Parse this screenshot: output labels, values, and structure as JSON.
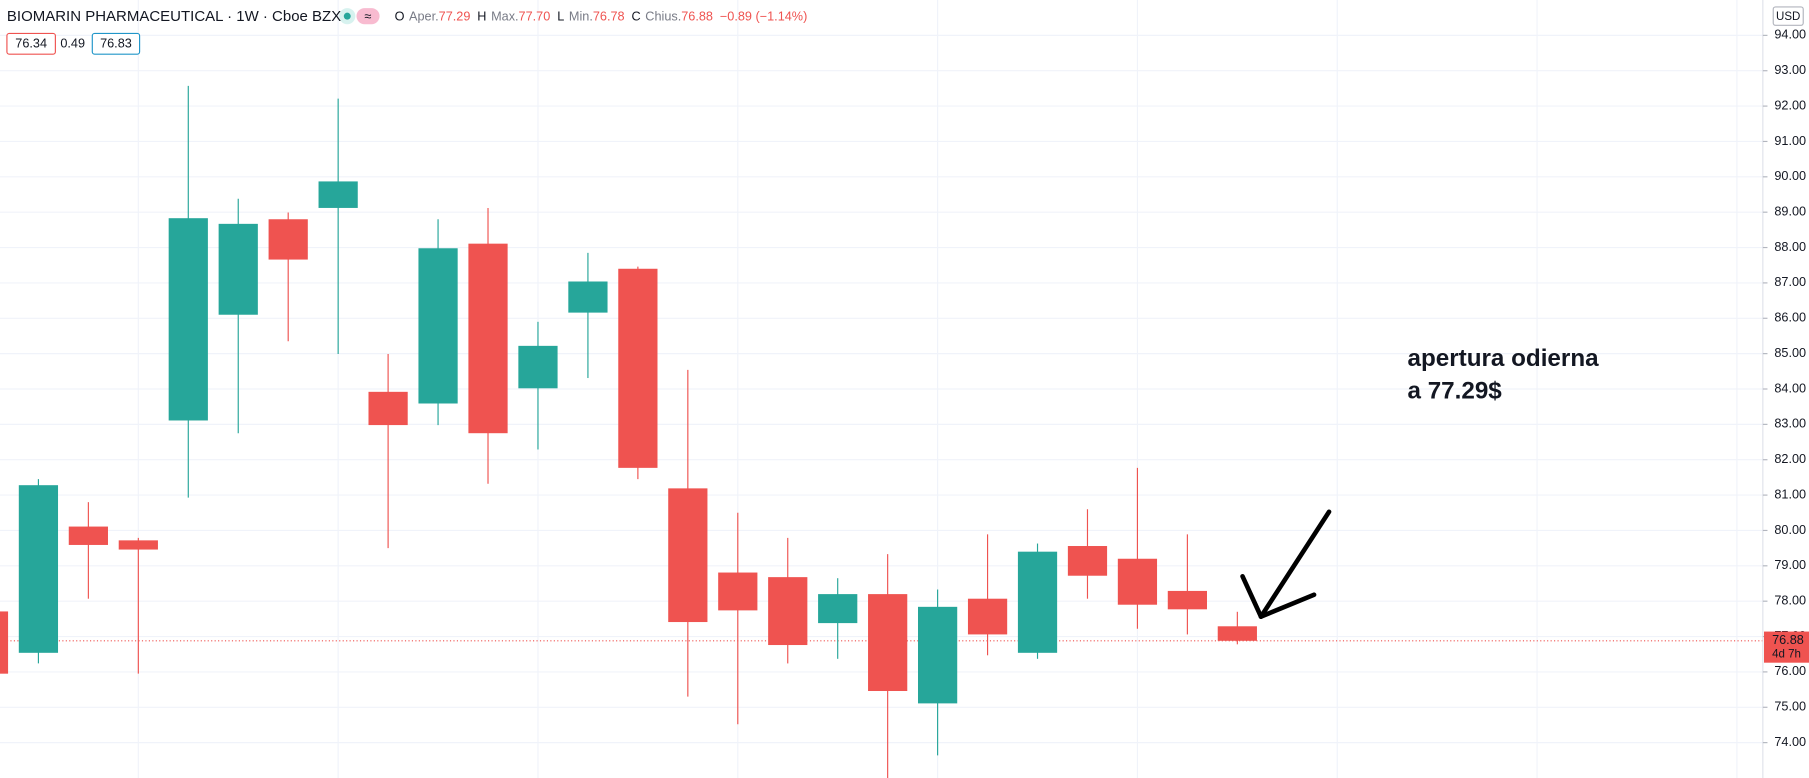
{
  "chart_data": {
    "type": "candlestick",
    "title": "BIOMARIN PHARMACEUTICAL · 1W · Cboe BZX",
    "legend_ohlc": [
      {
        "key": "O",
        "label": "Aper.",
        "value": "77.29"
      },
      {
        "key": "H",
        "label": "Max.",
        "value": "77.70"
      },
      {
        "key": "L",
        "label": "Min.",
        "value": "76.78"
      },
      {
        "key": "C",
        "label": "Chius.",
        "value": "76.88"
      }
    ],
    "change": "−0.89 (−1.14%)",
    "badges": [
      "76.34",
      "0.49",
      "76.83"
    ],
    "currency": "USD",
    "last_price": 76.88,
    "countdown": "4d 7h",
    "annotation": [
      "apertura odierna",
      "a 77.29$"
    ],
    "up_color": "#26a69a",
    "down_color": "#ef5350",
    "categories": [
      null,
      null,
      null,
      null,
      null,
      null,
      null,
      null,
      null,
      null,
      null,
      null,
      null,
      null,
      null,
      null,
      null,
      null,
      null,
      null,
      null,
      null,
      null,
      null,
      null,
      null
    ],
    "series": [
      {
        "name": "Open",
        "values": [
          77.71,
          76.54,
          80.11,
          79.72,
          83.11,
          86.1,
          88.8,
          89.12,
          83.92,
          83.59,
          88.11,
          84.02,
          86.16,
          87.4,
          81.19,
          78.81,
          78.68,
          77.38,
          78.2,
          75.11,
          78.07,
          76.54,
          79.56,
          79.2,
          78.29,
          77.29
        ]
      },
      {
        "name": "High",
        "values": [
          77.75,
          81.45,
          80.8,
          79.79,
          92.57,
          89.38,
          88.99,
          92.21,
          84.99,
          88.8,
          89.12,
          85.9,
          87.85,
          87.46,
          84.54,
          80.5,
          79.79,
          78.65,
          79.33,
          78.33,
          79.89,
          79.63,
          80.6,
          81.77,
          79.89,
          77.7
        ]
      },
      {
        "name": "Low",
        "values": [
          75.9,
          76.24,
          78.07,
          75.95,
          80.93,
          82.75,
          85.35,
          84.99,
          79.5,
          82.98,
          81.32,
          82.29,
          84.31,
          81.45,
          75.3,
          74.52,
          76.24,
          76.37,
          73.0,
          73.64,
          76.47,
          76.37,
          78.07,
          77.22,
          77.06,
          76.78
        ]
      },
      {
        "name": "Close",
        "values": [
          75.95,
          81.28,
          79.59,
          79.46,
          88.83,
          88.67,
          87.66,
          89.87,
          82.98,
          87.98,
          82.75,
          85.22,
          87.04,
          81.77,
          77.41,
          77.74,
          76.76,
          78.2,
          75.46,
          77.84,
          77.06,
          79.4,
          78.72,
          77.9,
          77.77,
          76.88
        ]
      }
    ],
    "ylim": [
      73,
      95
    ],
    "yticks": [
      {
        "value": 74,
        "label": "74.00"
      },
      {
        "value": 75,
        "label": "75.00"
      },
      {
        "value": 76,
        "label": "76.00"
      },
      {
        "value": 77,
        "label": "77.00"
      },
      {
        "value": 78,
        "label": "78.00"
      },
      {
        "value": 79,
        "label": "79.00"
      },
      {
        "value": 80,
        "label": "80.00"
      },
      {
        "value": 81,
        "label": "81.00"
      },
      {
        "value": 82,
        "label": "82.00"
      },
      {
        "value": 83,
        "label": "83.00"
      },
      {
        "value": 84,
        "label": "84.00"
      },
      {
        "value": 85,
        "label": "85.00"
      },
      {
        "value": 86,
        "label": "86.00"
      },
      {
        "value": 87,
        "label": "87.00"
      },
      {
        "value": 88,
        "label": "88.00"
      },
      {
        "value": 89,
        "label": "89.00"
      },
      {
        "value": 90,
        "label": "90.00"
      },
      {
        "value": 91,
        "label": "91.00"
      },
      {
        "value": 92,
        "label": "92.00"
      },
      {
        "value": 93,
        "label": "93.00"
      },
      {
        "value": 94,
        "label": "94.00"
      }
    ],
    "grid": true
  }
}
